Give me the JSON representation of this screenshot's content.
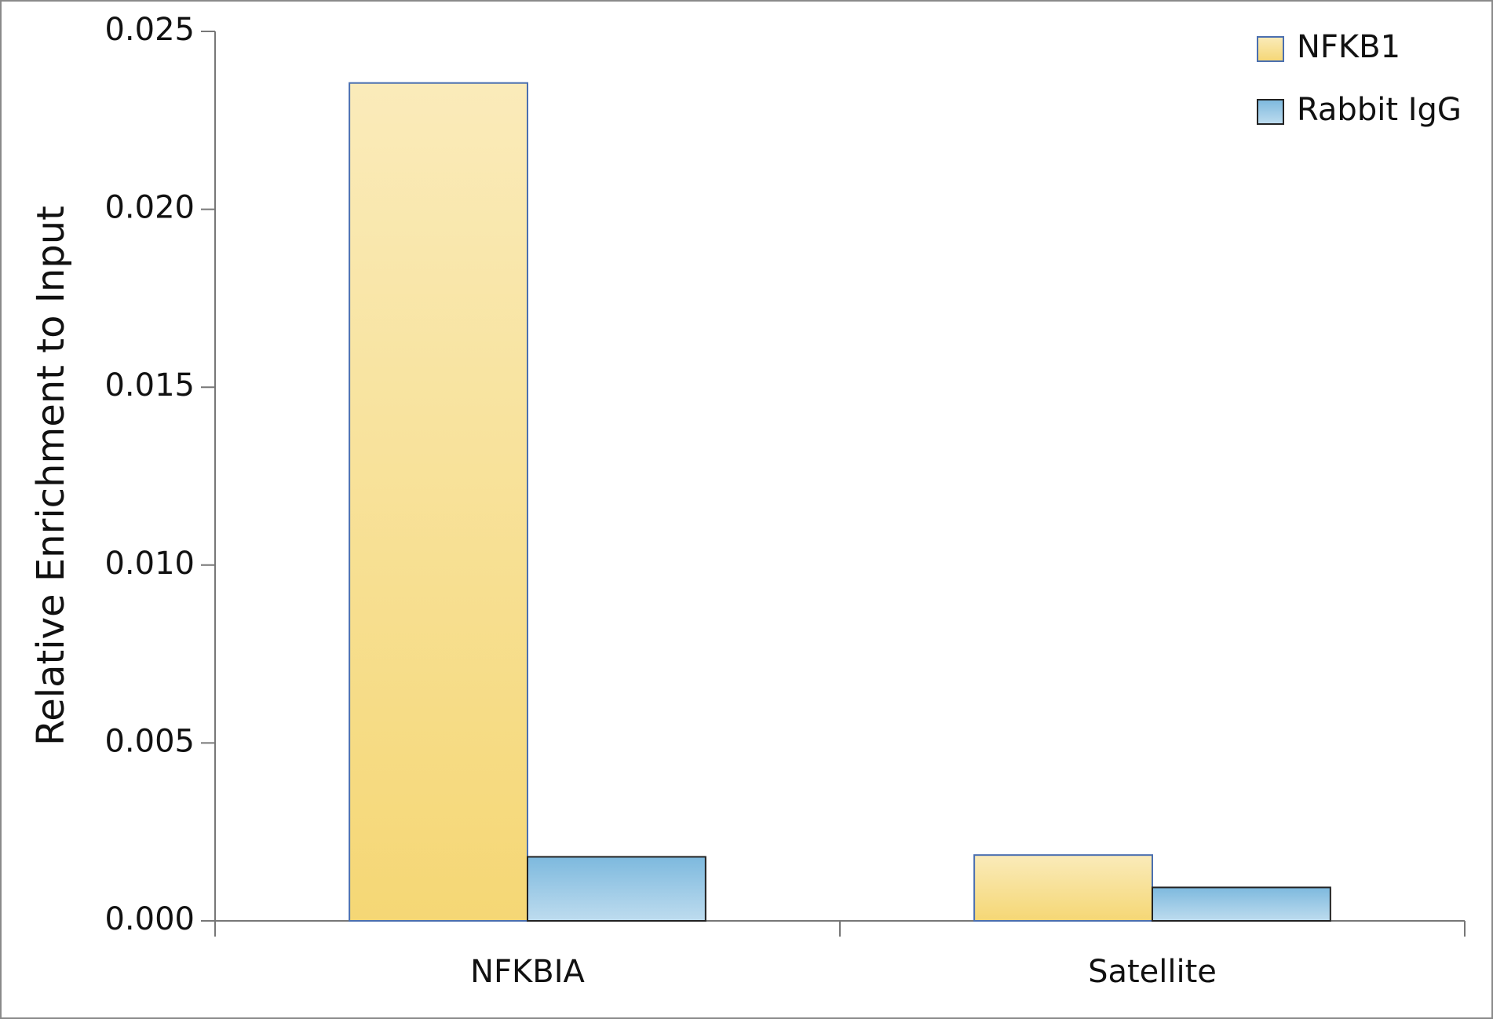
{
  "chart_data": {
    "type": "bar",
    "y_label": "Relative Enrichment to Input",
    "categories": [
      "NFKBIA",
      "Satellite"
    ],
    "series": [
      {
        "name": "NFKB1",
        "color": "#f5d775",
        "values": [
          0.02355,
          0.00185
        ]
      },
      {
        "name": "Rabbit IgG",
        "color": "#7db9de",
        "values": [
          0.0018,
          0.00094
        ]
      }
    ],
    "ylim": [
      0,
      0.025
    ],
    "yticks": [
      {
        "value": 0,
        "label": "0.000"
      },
      {
        "value": 0.005,
        "label": "0.005"
      },
      {
        "value": 0.01,
        "label": "0.010"
      },
      {
        "value": 0.015,
        "label": "0.015"
      },
      {
        "value": 0.02,
        "label": "0.020"
      },
      {
        "value": 0.025,
        "label": "0.025"
      }
    ],
    "grid": false,
    "legend": "top-right"
  }
}
